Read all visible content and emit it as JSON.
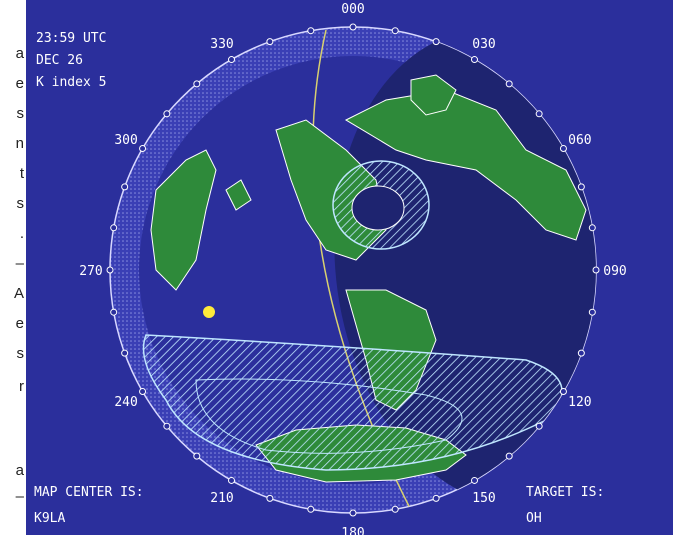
{
  "side_text_fragments": [
    "a",
    "e",
    "s",
    "n",
    "t",
    "s",
    ".",
    "–",
    "A",
    "e",
    "s",
    "r",
    "a",
    "–"
  ],
  "info": {
    "time": "23:59 UTC",
    "date": "DEC 26",
    "k_index": "K index  5",
    "map_center_label": "MAP CENTER IS:",
    "map_center_value": "K9LA",
    "target_label": "TARGET IS:",
    "target_value": "OH"
  },
  "bearings": [
    "000",
    "030",
    "060",
    "090",
    "120",
    "150",
    "180",
    "210",
    "240",
    "270",
    "300",
    "330"
  ],
  "colors": {
    "background": "#2b2f9c",
    "day_ocean": "#3a3fb5",
    "night_ocean": "#1e2470",
    "land": "#2e8a3a",
    "auroral_oval": "#bfe6ff",
    "sun": "#ffeb3b",
    "terminator": "#d8d070",
    "text": "#ffffff"
  },
  "icons": {
    "sun": "sun-icon",
    "tick": "bearing-tick-circle"
  }
}
